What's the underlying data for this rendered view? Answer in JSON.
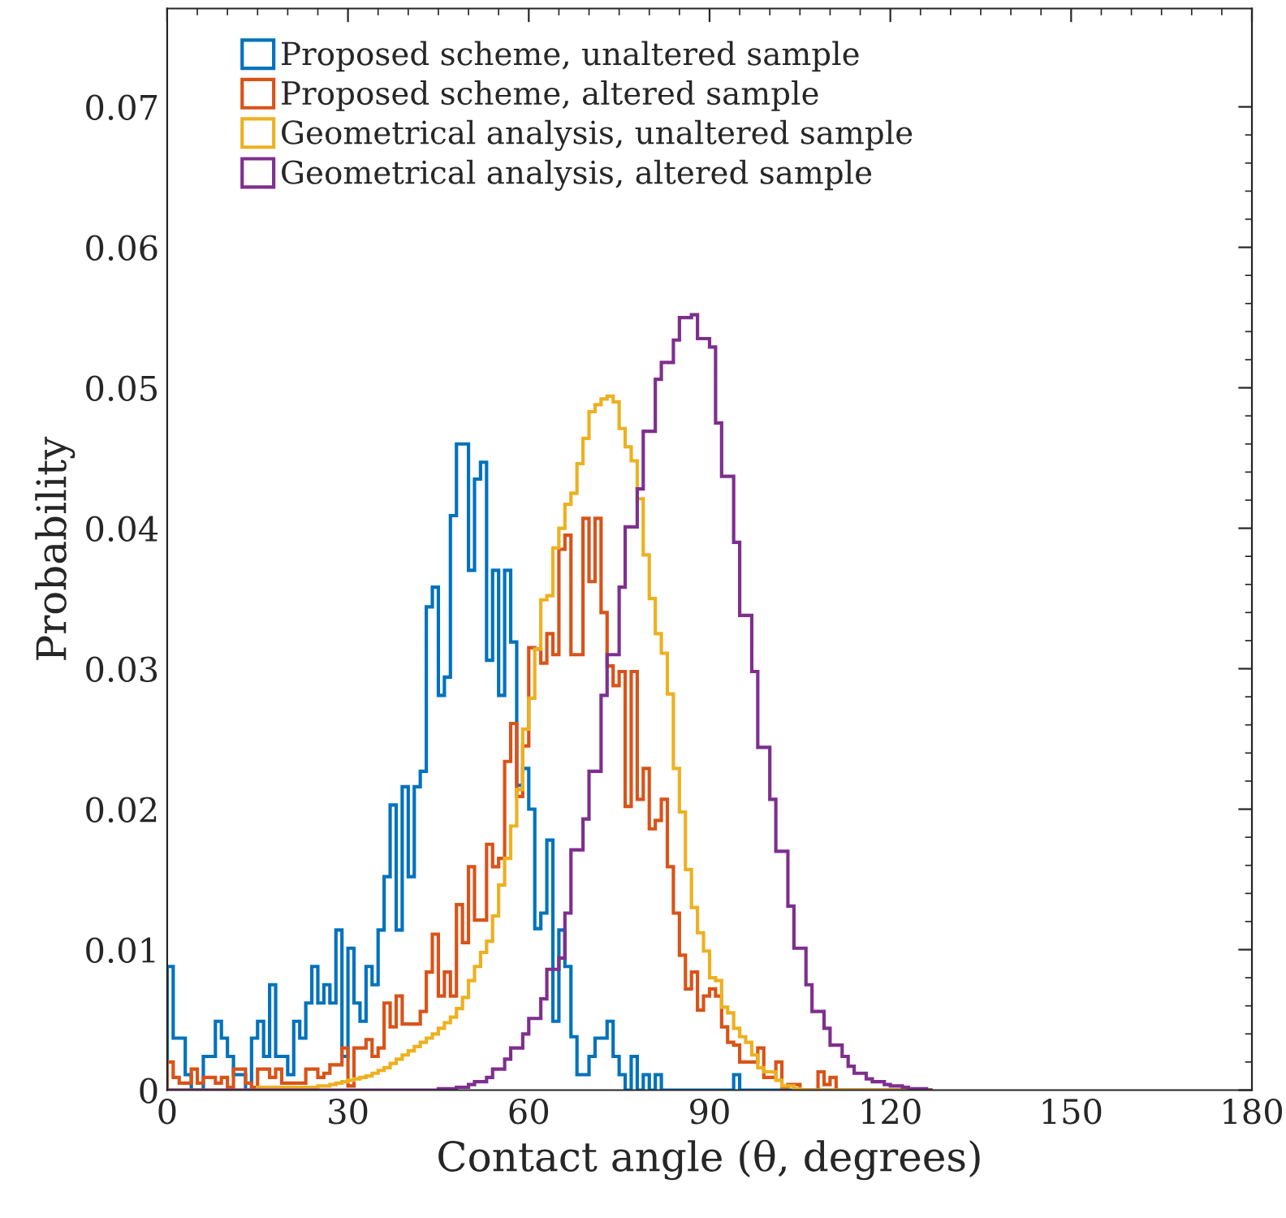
{
  "chart_data": {
    "type": "histogram",
    "xlabel": "Contact angle (θ, degrees)",
    "ylabel": "Probability",
    "xlim": [
      0,
      180
    ],
    "xticks": [
      0,
      30,
      60,
      90,
      120,
      150,
      180
    ],
    "ylim": [
      0,
      0.077
    ],
    "yticks": [
      0,
      0.01,
      0.02,
      0.03,
      0.04,
      0.05,
      0.06,
      0.07
    ],
    "grid": false,
    "legend": "top left",
    "bins": [
      0,
      1,
      2,
      3,
      4,
      5,
      6,
      7,
      8,
      9,
      10,
      11,
      12,
      13,
      14,
      15,
      16,
      17,
      18,
      19,
      20,
      21,
      22,
      23,
      24,
      25,
      26,
      27,
      28,
      29,
      30,
      31,
      32,
      33,
      34,
      35,
      36,
      37,
      38,
      39,
      40,
      41,
      42,
      43,
      44,
      45,
      46,
      47,
      48,
      49,
      50,
      51,
      52,
      53,
      54,
      55,
      56,
      57,
      58,
      59,
      60,
      61,
      62,
      63,
      64,
      65,
      66,
      67,
      68,
      69,
      70,
      71,
      72,
      73,
      74,
      75,
      76,
      77,
      78,
      79,
      80,
      81,
      82,
      83,
      84,
      85,
      86,
      87,
      88,
      89,
      90,
      91,
      92,
      93,
      94,
      95,
      96,
      97,
      98,
      99,
      100,
      101,
      102,
      103,
      104,
      105,
      106,
      107,
      108,
      109,
      110,
      111,
      112,
      113,
      114,
      115,
      116,
      117,
      118,
      119,
      120,
      121,
      122,
      123,
      124,
      125,
      126,
      127
    ],
    "series": [
      {
        "name": "Proposed scheme, unaltered sample",
        "color": "#0072bd",
        "values": [
          0.0088,
          0.0037,
          0.0037,
          0.0011,
          0,
          0,
          0.0024,
          0.0024,
          0.0049,
          0.0037,
          0.0024,
          0.0011,
          0.0011,
          0,
          0.0037,
          0.0049,
          0.0024,
          0.0075,
          0.0024,
          0.0024,
          0.0011,
          0.0049,
          0.0037,
          0.0062,
          0.0088,
          0.0062,
          0.0075,
          0.0062,
          0.0114,
          0.0024,
          0.0101,
          0.0062,
          0.0049,
          0.0088,
          0.0075,
          0.0114,
          0.0152,
          0.0203,
          0.0114,
          0.0216,
          0.0152,
          0.0216,
          0.0227,
          0.0344,
          0.0358,
          0.0281,
          0.0294,
          0.0409,
          0.046,
          0.046,
          0.037,
          0.0435,
          0.0447,
          0.0306,
          0.037,
          0.0281,
          0.037,
          0.0319,
          0.0217,
          0.0229,
          0.02,
          0.0115,
          0.0126,
          0.0178,
          0.0049,
          0.0114,
          0.0088,
          0.0038,
          0.0011,
          0.0011,
          0.0024,
          0.0037,
          0.0037,
          0.0049,
          0.0024,
          0.0011,
          0,
          0.0024,
          0,
          0.0011,
          0,
          0.0011,
          0,
          0,
          0,
          0,
          0,
          0,
          0,
          0,
          0,
          0,
          0,
          0,
          0.0011,
          0,
          0,
          0,
          0,
          0,
          0,
          0,
          0,
          0,
          0,
          0,
          0,
          0,
          0,
          0,
          0,
          0,
          0,
          0,
          0,
          0,
          0,
          0,
          0,
          0,
          0,
          0,
          0,
          0,
          0,
          0,
          0
        ]
      },
      {
        "name": "Proposed scheme, altered sample",
        "color": "#d95319",
        "values": [
          0.002,
          0.0009,
          0.0005,
          0.0005,
          0.0015,
          0.0005,
          0.0009,
          0.0009,
          0.0005,
          0.0009,
          0.0002,
          0.0015,
          0.0015,
          0.0005,
          0.0002,
          0.0015,
          0.0015,
          0.0009,
          0.0015,
          0.0005,
          0.0005,
          0.0005,
          0.0005,
          0.0015,
          0.0015,
          0.0009,
          0.0012,
          0.0018,
          0.0018,
          0.003,
          0.0003,
          0.003,
          0.003,
          0.0036,
          0.0024,
          0.003,
          0.0062,
          0.0045,
          0.0067,
          0.0047,
          0.0047,
          0.0047,
          0.0056,
          0.0084,
          0.0111,
          0.0067,
          0.0084,
          0.0067,
          0.0132,
          0.0105,
          0.0159,
          0.0121,
          0.0121,
          0.0175,
          0.0159,
          0.0165,
          0.0234,
          0.0261,
          0.0209,
          0.0245,
          0.0315,
          0.0314,
          0.0304,
          0.0325,
          0.031,
          0.0385,
          0.0395,
          0.031,
          0.031,
          0.0407,
          0.0362,
          0.0407,
          0.034,
          0.0302,
          0.0288,
          0.0298,
          0.0202,
          0.0298,
          0.0207,
          0.0229,
          0.0186,
          0.0192,
          0.0207,
          0.0159,
          0.0126,
          0.0096,
          0.0072,
          0.0084,
          0.0057,
          0.0067,
          0.0072,
          0.0067,
          0.0045,
          0.0034,
          0.0032,
          0.002,
          0.002,
          0.002,
          0.003,
          0.0009,
          0.0009,
          0.002,
          0.0002,
          0.0004,
          0.0004,
          0,
          0,
          0,
          0.0013,
          0.0004,
          0.0009,
          0,
          0,
          0,
          0,
          0,
          0,
          0,
          0,
          0,
          0,
          0,
          0,
          0,
          0,
          0,
          0
        ]
      },
      {
        "name": "Geometrical analysis, unaltered sample",
        "color": "#edb120",
        "values": [
          0,
          0,
          0,
          0,
          0,
          0,
          0,
          0,
          0,
          0,
          0,
          0,
          0,
          0,
          0,
          0.0002,
          0.0002,
          0.0002,
          0.0002,
          0.0002,
          0.0002,
          0.0002,
          0.0002,
          0.0002,
          0.0002,
          0.0003,
          0.0003,
          0.0004,
          0.0005,
          0.0006,
          0.0007,
          0.0008,
          0.0009,
          0.001,
          0.0012,
          0.0014,
          0.0016,
          0.0019,
          0.0022,
          0.0025,
          0.0028,
          0.0031,
          0.0034,
          0.0037,
          0.004,
          0.0044,
          0.0048,
          0.0052,
          0.0058,
          0.0066,
          0.0078,
          0.0088,
          0.0098,
          0.0106,
          0.0124,
          0.0146,
          0.0165,
          0.0188,
          0.0214,
          0.0257,
          0.0279,
          0.0314,
          0.0349,
          0.0352,
          0.0386,
          0.04,
          0.0417,
          0.0425,
          0.0446,
          0.0464,
          0.0483,
          0.0488,
          0.0492,
          0.0494,
          0.049,
          0.0471,
          0.0458,
          0.0448,
          0.0421,
          0.0381,
          0.035,
          0.0325,
          0.0311,
          0.0282,
          0.0229,
          0.0198,
          0.0157,
          0.013,
          0.0112,
          0.0099,
          0.008,
          0.0078,
          0.0059,
          0.0055,
          0.0044,
          0.0038,
          0.0034,
          0.0025,
          0.0016,
          0.0013,
          0.0013,
          0.0007,
          0.0003,
          0.0003,
          0.0001,
          0,
          0,
          0,
          0,
          0,
          0,
          0,
          0,
          0,
          0,
          0,
          0,
          0,
          0,
          0,
          0,
          0,
          0,
          0,
          0,
          0,
          0
        ]
      },
      {
        "name": "Geometrical analysis, altered sample",
        "color": "#7e2f8e",
        "values": [
          0,
          0,
          0,
          0,
          0,
          0,
          0,
          0,
          0,
          0,
          0,
          0,
          0,
          0,
          0,
          0,
          0,
          0,
          0,
          0,
          0,
          0,
          0,
          0,
          0,
          0,
          0,
          0,
          0,
          0,
          0,
          0,
          0,
          0,
          0,
          0,
          0,
          0,
          0,
          0,
          0,
          0,
          0,
          0,
          0,
          0.0001,
          0.0001,
          0.0001,
          0.0002,
          0.0002,
          0.0004,
          0.0006,
          0.0006,
          0.0009,
          0.0015,
          0.0015,
          0.0022,
          0.003,
          0.003,
          0.004,
          0.0051,
          0.0051,
          0.0065,
          0.0086,
          0.0086,
          0.0094,
          0.0126,
          0.0171,
          0.0171,
          0.0193,
          0.0227,
          0.0227,
          0.0281,
          0.031,
          0.031,
          0.0358,
          0.0401,
          0.0401,
          0.0428,
          0.0469,
          0.0469,
          0.0506,
          0.0518,
          0.0518,
          0.0534,
          0.055,
          0.055,
          0.0552,
          0.0535,
          0.0535,
          0.0529,
          0.0475,
          0.0437,
          0.0437,
          0.039,
          0.0338,
          0.0338,
          0.0298,
          0.0244,
          0.0244,
          0.0207,
          0.017,
          0.017,
          0.0131,
          0.0101,
          0.0101,
          0.0075,
          0.0056,
          0.0056,
          0.0044,
          0.0032,
          0.0032,
          0.0024,
          0.0017,
          0.0012,
          0.0012,
          0.0008,
          0.0006,
          0.0006,
          0.0004,
          0.0003,
          0.0003,
          0.0002,
          0.0001,
          0.0001,
          0.0001,
          0
        ]
      }
    ]
  }
}
